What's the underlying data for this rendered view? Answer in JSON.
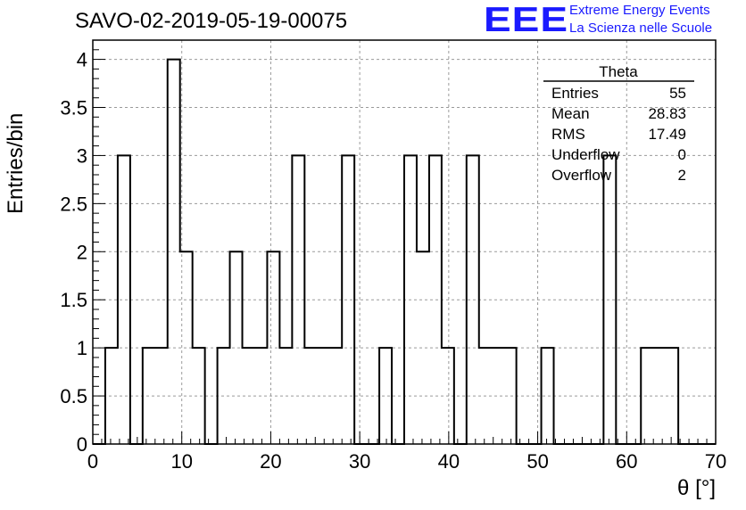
{
  "title": "SAVO-02-2019-05-19-00075",
  "logo": {
    "mark": "EEE",
    "line1": "Extreme Energy Events",
    "line2": "La Scienza nelle Scuole",
    "color": "#1a1aff"
  },
  "chart_data": {
    "type": "histogram",
    "title": "SAVO-02-2019-05-19-00075",
    "xlabel": "θ [°]",
    "ylabel": "Entries/bin",
    "xlim": [
      0,
      70
    ],
    "ylim": [
      0,
      4.2
    ],
    "grid": true,
    "bin_width": 1.4,
    "x_ticks": [
      "0",
      "10",
      "20",
      "30",
      "40",
      "50",
      "60",
      "70"
    ],
    "y_ticks": [
      "0",
      "0.5",
      "1",
      "1.5",
      "2",
      "2.5",
      "3",
      "3.5",
      "4"
    ],
    "bin_edges": [
      0,
      1.4,
      2.8,
      4.2,
      5.6,
      7.0,
      8.4,
      9.8,
      11.2,
      12.6,
      14.0,
      15.4,
      16.8,
      18.2,
      19.6,
      21.0,
      22.4,
      23.8,
      25.2,
      26.6,
      28.0,
      29.4,
      30.8,
      32.2,
      33.6,
      35.0,
      36.4,
      37.8,
      39.2,
      40.6,
      42.0,
      43.4,
      44.8,
      46.2,
      47.6,
      49.0,
      50.4,
      51.8,
      53.2,
      54.6,
      56.0,
      57.4,
      58.8,
      60.2,
      61.6,
      63.0,
      64.4,
      65.8,
      67.2,
      68.6,
      70.0
    ],
    "counts": [
      0,
      1,
      3,
      0,
      1,
      1,
      4,
      2,
      1,
      0,
      1,
      2,
      1,
      1,
      2,
      1,
      3,
      1,
      1,
      1,
      3,
      0,
      0,
      1,
      0,
      3,
      2,
      3,
      1,
      0,
      3,
      1,
      1,
      1,
      0,
      0,
      1,
      0,
      0,
      0,
      0,
      3,
      0,
      0,
      1,
      1,
      1,
      0,
      0,
      0
    ],
    "stats": {
      "name": "Theta",
      "rows": [
        {
          "label": "Entries",
          "value": "55"
        },
        {
          "label": "Mean",
          "value": "28.83"
        },
        {
          "label": "RMS",
          "value": "17.49"
        },
        {
          "label": "Underflow",
          "value": "0"
        },
        {
          "label": "Overflow",
          "value": "2"
        }
      ]
    }
  }
}
